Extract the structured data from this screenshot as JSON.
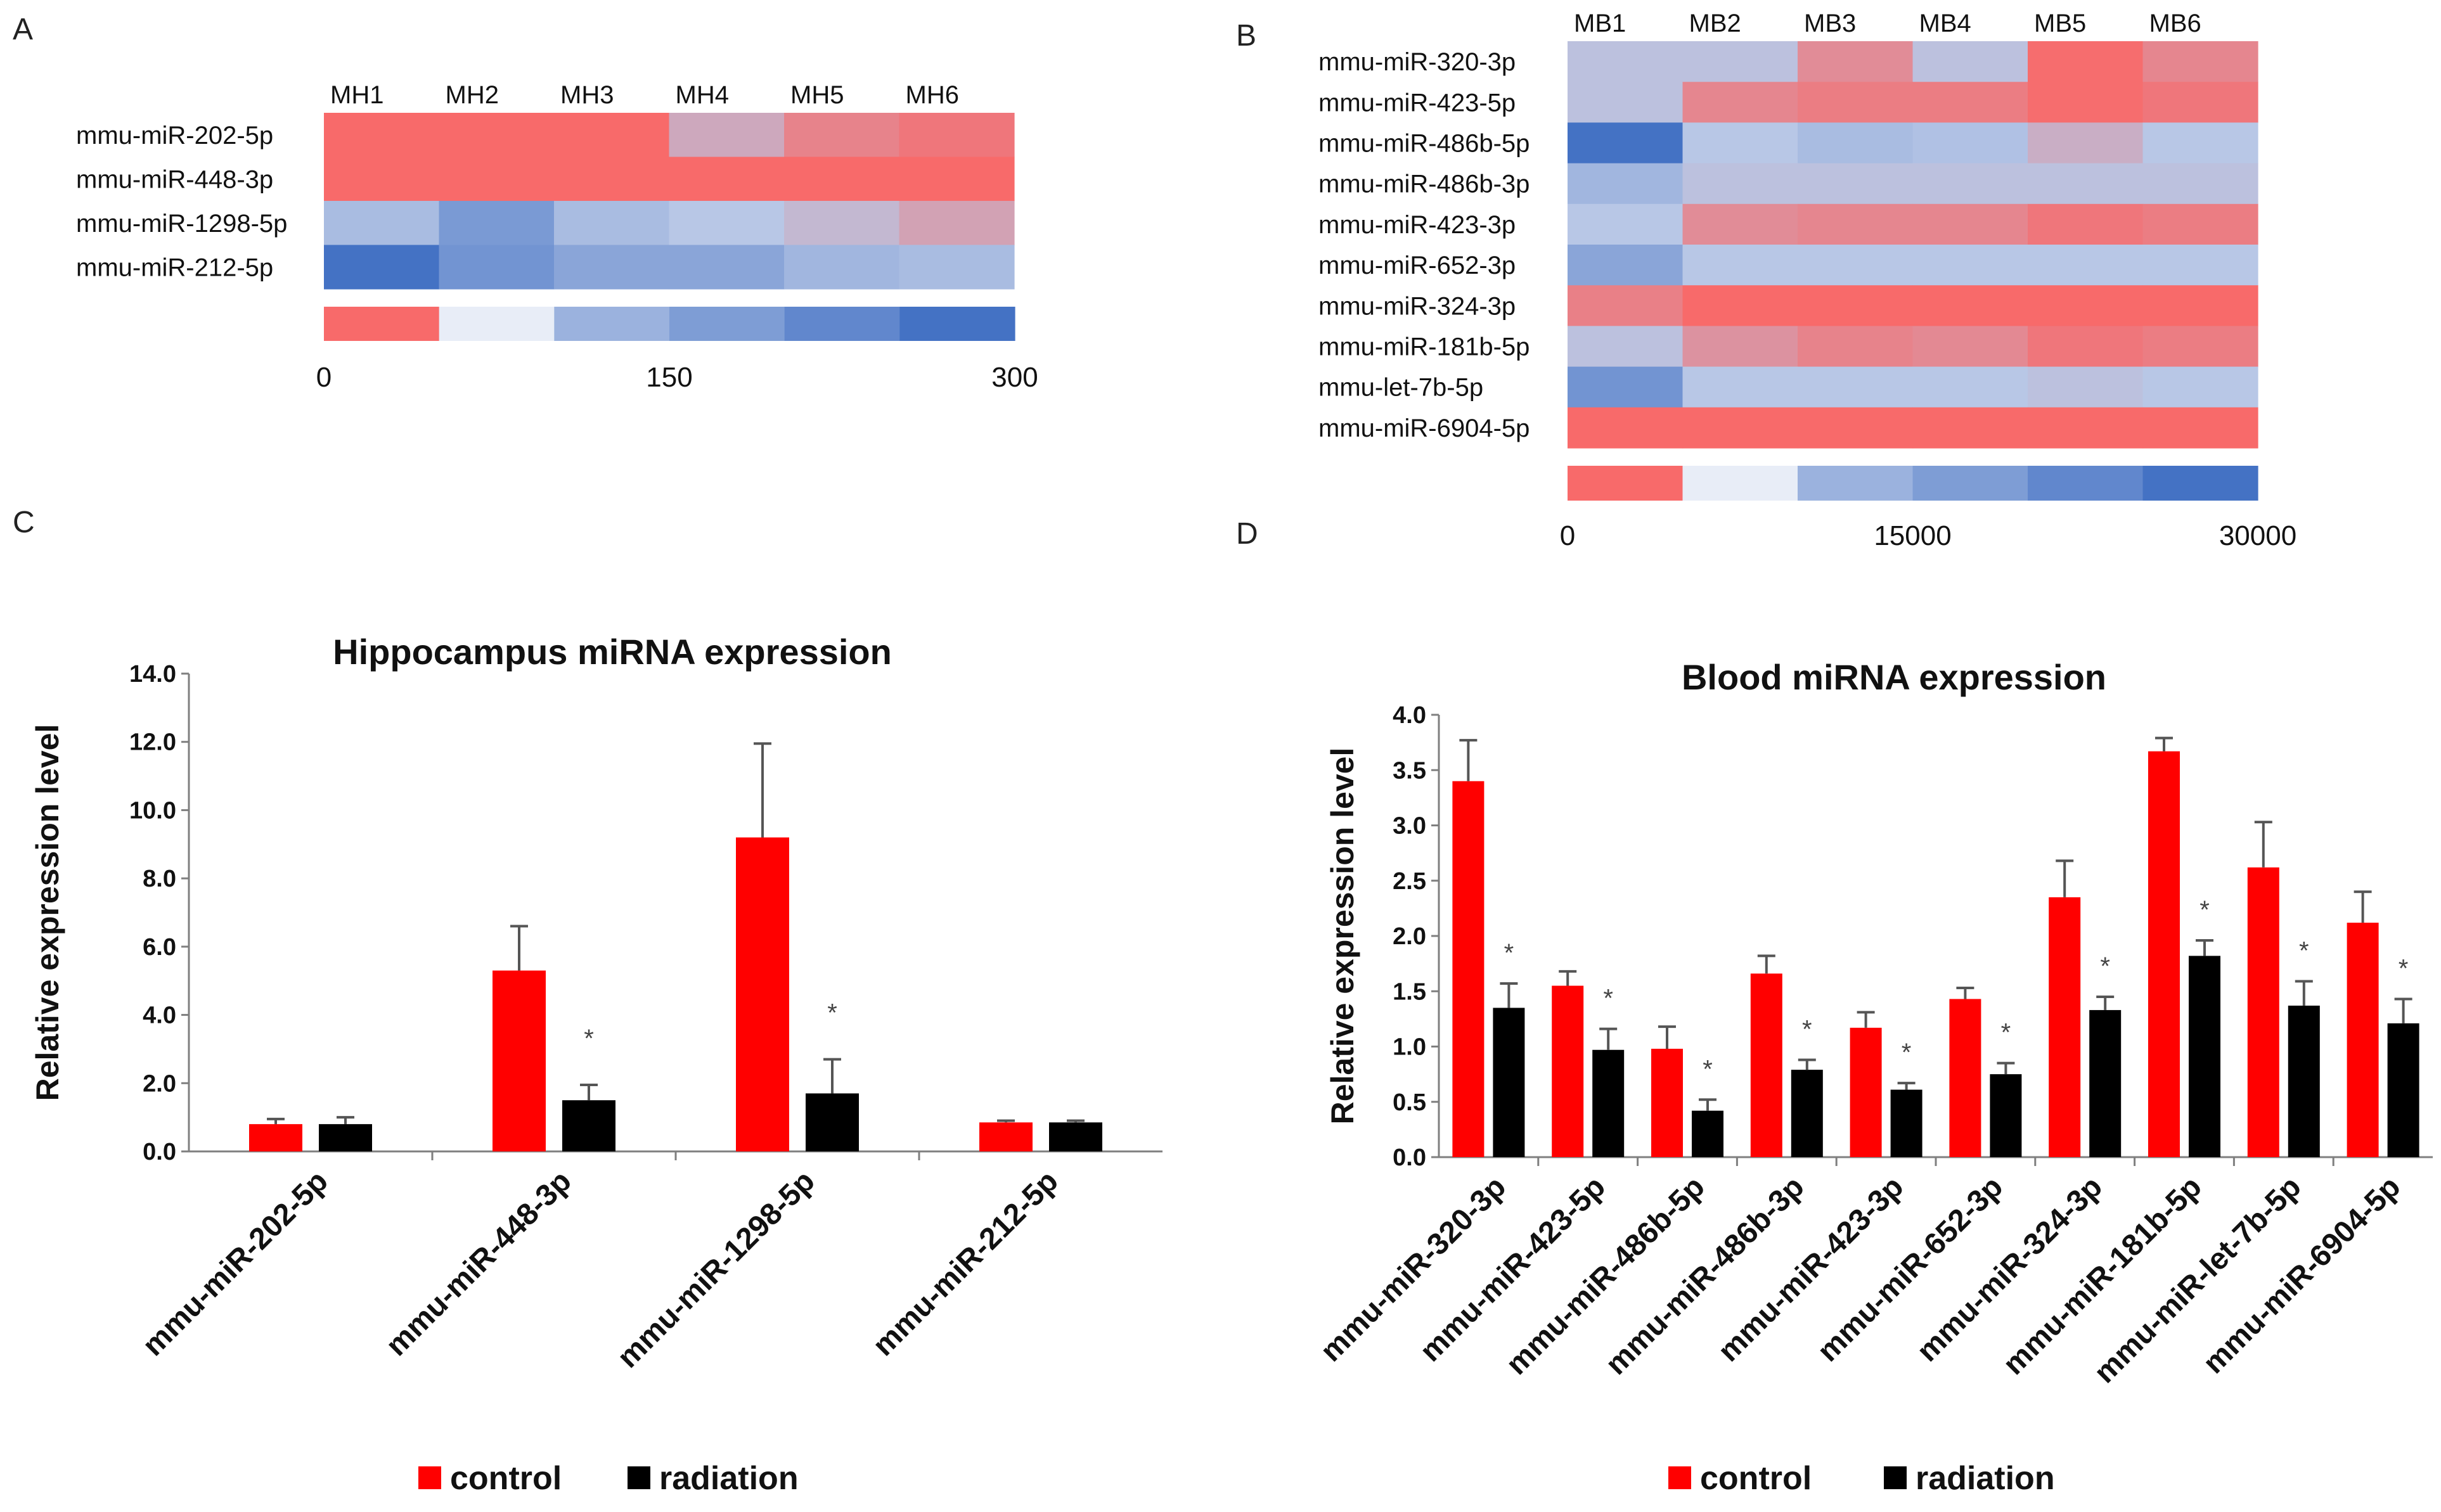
{
  "panels": {
    "A": {
      "letter": "A",
      "type": "heatmap",
      "columns": [
        "MH1",
        "MH2",
        "MH3",
        "MH4",
        "MH5",
        "MH6"
      ],
      "rows": [
        "mmu-miR-202-5p",
        "mmu-miR-448-3p",
        "mmu-miR-1298-5p",
        "mmu-miR-212-5p"
      ],
      "values": [
        [
          0,
          0,
          0,
          100,
          40,
          20
        ],
        [
          0,
          0,
          0,
          0,
          0,
          0
        ],
        [
          170,
          230,
          170,
          150,
          125,
          90
        ],
        [
          300,
          240,
          210,
          210,
          180,
          170
        ]
      ],
      "scale_min": 0,
      "scale_max": 300,
      "scale_labels": [
        "0",
        "150",
        "300"
      ],
      "scale_steps": 6
    },
    "B": {
      "letter": "B",
      "type": "heatmap",
      "columns": [
        "MB1",
        "MB2",
        "MB3",
        "MB4",
        "MB5",
        "MB6"
      ],
      "rows": [
        "mmu-miR-320-3p",
        "mmu-miR-423-5p",
        "mmu-miR-486b-5p",
        "mmu-miR-486b-3p",
        "mmu-miR-423-3p",
        "mmu-miR-652-3p",
        "mmu-miR-324-3p",
        "mmu-miR-181b-5p",
        "mmu-let-7b-5p",
        "mmu-miR-6904-5p"
      ],
      "values": [
        [
          14000,
          14000,
          5500,
          14000,
          500,
          4500
        ],
        [
          14000,
          4500,
          3000,
          3000,
          500,
          2000
        ],
        [
          30000,
          15000,
          17000,
          16000,
          11000,
          15000
        ],
        [
          18000,
          14000,
          14000,
          14000,
          14000,
          14000
        ],
        [
          15000,
          5500,
          4500,
          4500,
          2000,
          3000
        ],
        [
          21000,
          15000,
          15000,
          15000,
          15000,
          15000
        ],
        [
          3500,
          0,
          0,
          0,
          0,
          0
        ],
        [
          14000,
          6500,
          4000,
          5000,
          2000,
          3000
        ],
        [
          24000,
          15000,
          15000,
          15000,
          14000,
          15000
        ],
        [
          0,
          0,
          0,
          0,
          0,
          0
        ]
      ],
      "scale_min": 0,
      "scale_max": 30000,
      "scale_labels": [
        "0",
        "15000",
        "30000"
      ],
      "scale_steps": 6
    },
    "C": {
      "letter": "C"
    },
    "D": {
      "letter": "D"
    }
  },
  "colors": {
    "heat_low": "#f86a6a",
    "heat_mid": "#b8c7e6",
    "heat_high": "#4472c4",
    "control": "#ff0000",
    "radiation": "#000000",
    "errorbar": "#555555"
  },
  "chart_data": [
    {
      "type": "bar",
      "title": "Hippocampus miRNA expression",
      "ylabel": "Relative expression level",
      "xlabel": "",
      "categories": [
        "mmu-miR-202-5p",
        "mmu-miR-448-3p",
        "mmu-miR-1298-5p",
        "mmu-miR-212-5p"
      ],
      "series": [
        {
          "name": "control",
          "values": [
            0.8,
            5.3,
            9.2,
            0.85
          ],
          "errors": [
            0.15,
            1.3,
            2.75,
            0.05
          ]
        },
        {
          "name": "radiation",
          "values": [
            0.8,
            1.5,
            1.7,
            0.85
          ],
          "errors": [
            0.2,
            0.45,
            1.0,
            0.05
          ]
        }
      ],
      "significance": [
        "",
        "*",
        "*",
        ""
      ],
      "ylim": [
        0,
        14
      ],
      "yticks": [
        "0.0",
        "2.0",
        "4.0",
        "6.0",
        "8.0",
        "10.0",
        "12.0",
        "14.0"
      ],
      "legend": "bottom"
    },
    {
      "type": "bar",
      "title": "Blood miRNA expression",
      "ylabel": "Relative expression level",
      "xlabel": "",
      "categories": [
        "mmu-miR-320-3p",
        "mmu-miR-423-5p",
        "mmu-miR-486b-5p",
        "mmu-miR-486b-3p",
        "mmu-miR-423-3p",
        "mmu-miR-652-3p",
        "mmu-miR-324-3p",
        "mmu-miR-181b-5p",
        "mmu-miR-let-7b-5p",
        "mmu-miR-6904-5p"
      ],
      "series": [
        {
          "name": "control",
          "values": [
            3.4,
            1.55,
            0.98,
            1.66,
            1.17,
            1.43,
            2.35,
            3.67,
            2.62,
            2.12
          ],
          "errors": [
            0.37,
            0.13,
            0.2,
            0.16,
            0.14,
            0.1,
            0.33,
            0.12,
            0.41,
            0.28
          ]
        },
        {
          "name": "radiation",
          "values": [
            1.35,
            0.97,
            0.42,
            0.79,
            0.61,
            0.75,
            1.33,
            1.82,
            1.37,
            1.21
          ],
          "errors": [
            0.22,
            0.19,
            0.1,
            0.09,
            0.06,
            0.1,
            0.12,
            0.14,
            0.22,
            0.22
          ]
        }
      ],
      "significance": [
        "*",
        "*",
        "*",
        "*",
        "*",
        "*",
        "*",
        "*",
        "*",
        "*"
      ],
      "ylim": [
        0,
        4
      ],
      "yticks": [
        "0.0",
        "0.5",
        "1.0",
        "1.5",
        "2.0",
        "2.5",
        "3.0",
        "3.5",
        "4.0"
      ],
      "legend": "bottom"
    }
  ]
}
